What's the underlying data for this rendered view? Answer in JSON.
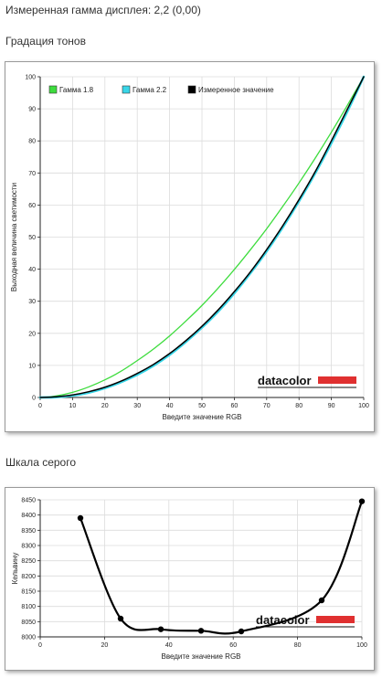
{
  "page": {
    "measured_gamma_label": "Измеренная гамма дисплея: 2,2 (0,00)",
    "tone_section_title": "Градация тонов",
    "gray_section_title": "Шкала серого"
  },
  "colors": {
    "gamma18": "#3ddc3d",
    "gamma22": "#38d6e8",
    "measured": "#000000",
    "logo_bar": "#e03030",
    "grid": "#dcdcdc",
    "axis": "#222222"
  },
  "chart_data": [
    {
      "type": "line",
      "xlabel": "Введите значение RGB",
      "ylabel": "Выходная величина светимости",
      "xlim": [
        0,
        100
      ],
      "ylim": [
        0,
        100
      ],
      "xticks": [
        0,
        10,
        20,
        30,
        40,
        50,
        60,
        70,
        80,
        90,
        100
      ],
      "yticks": [
        0,
        10,
        20,
        30,
        40,
        50,
        60,
        70,
        80,
        90,
        100
      ],
      "grid": true,
      "legend_position": "top-left",
      "logo": "datacolor",
      "series": [
        {
          "name": "Гамма 1.8",
          "color": "#3ddc3d",
          "x": [
            0,
            5,
            10,
            15,
            20,
            25,
            30,
            35,
            40,
            45,
            50,
            55,
            60,
            65,
            70,
            75,
            80,
            85,
            90,
            95,
            100
          ],
          "y": [
            0,
            0.5,
            1.6,
            3.3,
            5.5,
            8.2,
            11.5,
            15.1,
            19.2,
            23.8,
            28.7,
            34.1,
            39.9,
            46.1,
            52.6,
            59.6,
            66.9,
            74.6,
            82.7,
            91.2,
            100
          ]
        },
        {
          "name": "Гамма 2.2",
          "color": "#38d6e8",
          "x": [
            0,
            5,
            10,
            15,
            20,
            25,
            30,
            35,
            40,
            45,
            50,
            55,
            60,
            65,
            70,
            75,
            80,
            85,
            90,
            95,
            100
          ],
          "y": [
            0,
            0.1,
            0.6,
            1.5,
            2.9,
            4.8,
            7.1,
            9.9,
            13.3,
            17.3,
            21.8,
            26.8,
            32.5,
            38.8,
            45.6,
            53.1,
            61.2,
            69.9,
            79.3,
            89.3,
            100
          ]
        },
        {
          "name": "Измеренное значение",
          "color": "#000000",
          "x": [
            0,
            5,
            10,
            15,
            20,
            25,
            30,
            35,
            40,
            45,
            50,
            55,
            60,
            65,
            70,
            75,
            80,
            85,
            90,
            95,
            100
          ],
          "y": [
            0,
            0.2,
            0.8,
            1.8,
            3.2,
            5.1,
            7.5,
            10.3,
            13.7,
            17.7,
            22.2,
            27.3,
            33.0,
            39.2,
            46.1,
            53.6,
            61.7,
            70.4,
            80.0,
            90.0,
            100
          ]
        }
      ]
    },
    {
      "type": "line",
      "xlabel": "Введите значение RGB",
      "ylabel": "Кельвину",
      "xlim": [
        0,
        100
      ],
      "ylim": [
        8000,
        8450
      ],
      "xticks": [
        0,
        20,
        40,
        60,
        80,
        100
      ],
      "yticks": [
        8000,
        8050,
        8100,
        8150,
        8200,
        8250,
        8300,
        8350,
        8400,
        8450
      ],
      "grid": true,
      "logo": "datacolor",
      "series": [
        {
          "color": "#000000",
          "x": [
            12.5,
            25,
            37.5,
            50,
            62.5,
            87.5,
            100
          ],
          "y": [
            8390,
            8060,
            8025,
            8020,
            8018,
            8120,
            8445
          ]
        }
      ]
    }
  ]
}
